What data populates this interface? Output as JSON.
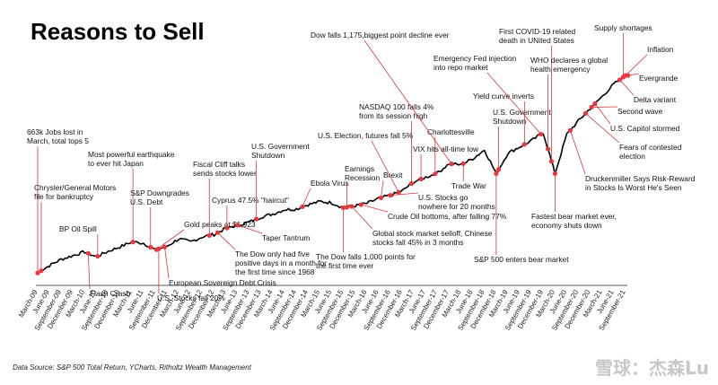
{
  "chart_data": {
    "type": "line",
    "title": "Reasons to Sell",
    "source": "Data Source: S&P 500 Total Return, YCharts, Ritholtz Wealth Management",
    "xlabel": "",
    "ylabel": "",
    "line_color": "#000000",
    "marker_color": "#e8383d",
    "categories": [
      "March-09",
      "June-09",
      "September-09",
      "December-09",
      "March-10",
      "June-10",
      "September-10",
      "December-10",
      "March-11",
      "June-11",
      "September-11",
      "December-11",
      "March-12",
      "June-12",
      "September-12",
      "December-12",
      "March-13",
      "June-13",
      "September-13",
      "December-13",
      "March-14",
      "June-14",
      "September-14",
      "December-14",
      "March-15",
      "June-15",
      "September-15",
      "December-15",
      "March-16",
      "June-16",
      "September-16",
      "December-16",
      "March-17",
      "June-17",
      "September-17",
      "December-17",
      "March-18",
      "June-18",
      "September-18",
      "December-18",
      "March-19",
      "June-19",
      "September-19",
      "December-19",
      "March-20",
      "June-20",
      "September-20",
      "December-20",
      "March-21",
      "June-21",
      "September-21"
    ],
    "series": [
      {
        "values": [
          0.5,
          0.62,
          0.72,
          0.78,
          0.84,
          0.76,
          0.85,
          0.92,
          1.0,
          0.98,
          0.87,
          0.93,
          1.05,
          1.0,
          1.08,
          1.12,
          1.22,
          1.27,
          1.32,
          1.4,
          1.45,
          1.52,
          1.53,
          1.6,
          1.65,
          1.63,
          1.55,
          1.58,
          1.62,
          1.7,
          1.75,
          1.82,
          1.97,
          2.04,
          2.11,
          2.26,
          2.24,
          2.34,
          2.48,
          2.1,
          2.43,
          2.53,
          2.63,
          2.76,
          2.1,
          2.73,
          2.95,
          3.15,
          3.34,
          3.54,
          3.68
        ]
      }
    ],
    "ylim": [
      0.3,
      4.1
    ],
    "grid": false,
    "baseline": true,
    "events": [
      {
        "text": "663k Jobs lost in\nMarch, total tops 5",
        "pos": 0.0,
        "side": "up"
      },
      {
        "text": "Chrysler/General Motors\nfile for bankruptcy",
        "pos": 0.3,
        "side": "up"
      },
      {
        "text": "BP Oil Spill",
        "pos": 5.1,
        "side": "up"
      },
      {
        "text": "Flash Crash",
        "pos": 4.3,
        "side": "down"
      },
      {
        "text": "Most powerful earthquake\nto ever hit Japan",
        "pos": 8.1,
        "side": "up"
      },
      {
        "text": "S&P Downgrades\nU.S. Debt",
        "pos": 9.6,
        "side": "up"
      },
      {
        "text": "U.S. Stocks fall 20%",
        "pos": 10.3,
        "side": "down"
      },
      {
        "text": "European Sovereign Debt Crisis",
        "pos": 10.8,
        "side": "down"
      },
      {
        "text": "Gold peaks at $1,923",
        "pos": 10.1,
        "side": "up"
      },
      {
        "text": "Fiscal Cliff talks\nsends stocks lower",
        "pos": 14.6,
        "side": "up"
      },
      {
        "text": "Cyprus 47.5% \"haircut\"",
        "pos": 16.1,
        "side": "up"
      },
      {
        "text": "The Dow only had five\npositive days in a month for\nthe first time since 1968",
        "pos": 15.3,
        "side": "down"
      },
      {
        "text": "U.S. Government\nShutdown",
        "pos": 18.6,
        "side": "up"
      },
      {
        "text": "Taper Tantrum",
        "pos": 17.0,
        "side": "down"
      },
      {
        "text": "Ebola Virus",
        "pos": 22.5,
        "side": "up"
      },
      {
        "text": "The Dow falls 1,000 points for\nthe first time ever",
        "pos": 26.0,
        "side": "down"
      },
      {
        "text": "Earnings\nRecession",
        "pos": 26.3,
        "side": "up"
      },
      {
        "text": "Global stock market selloff, Chinese\nstocks fall 45% in 3 months",
        "pos": 26.7,
        "side": "down"
      },
      {
        "text": "Crude Oil bottoms, after falling 77%",
        "pos": 27.5,
        "side": "down"
      },
      {
        "text": "Brexit",
        "pos": 29.2,
        "side": "up"
      },
      {
        "text": "U.S. Stocks go\nnowhere for 20 months",
        "pos": 30.0,
        "side": "down"
      },
      {
        "text": "U.S. Election, futures fall 5%",
        "pos": 30.7,
        "side": "up"
      },
      {
        "text": "NASDAQ 100 falls 4%\nfrom its  session high",
        "pos": 31.8,
        "side": "up"
      },
      {
        "text": "VIX hits all-time low",
        "pos": 32.6,
        "side": "up"
      },
      {
        "text": "Charlottesville",
        "pos": 33.8,
        "side": "up"
      },
      {
        "text": "Dow falls 1,175,biggest point decline ever",
        "pos": 35.2,
        "side": "up"
      },
      {
        "text": "Trade War",
        "pos": 36.2,
        "side": "down"
      },
      {
        "text": "U.S. Government\nShutdown",
        "pos": 39.2,
        "side": "up"
      },
      {
        "text": "S&P 500 enters bear market",
        "pos": 39.0,
        "side": "down"
      },
      {
        "text": "Yield curve inverts",
        "pos": 41.4,
        "side": "up"
      },
      {
        "text": "Emergency Fed injection\ninto repo market",
        "pos": 42.8,
        "side": "up"
      },
      {
        "text": "First COVID-19 related\ndeath in UNited States",
        "pos": 43.7,
        "side": "up"
      },
      {
        "text": "WHO declares a global\nhealth emergency",
        "pos": 43.4,
        "side": "up"
      },
      {
        "text": "Fastest bear market ever,\neconomy shuts down",
        "pos": 44.0,
        "side": "down"
      },
      {
        "text": "Druckenmiller Says Risk-Reward\nin Stocks Is Worst He's Seen",
        "pos": 45.3,
        "side": "down"
      },
      {
        "text": "Fears of contested\nelection",
        "pos": 46.6,
        "side": "down"
      },
      {
        "text": "U.S. Capitol stormed",
        "pos": 47.4,
        "side": "down"
      },
      {
        "text": "Second wave",
        "pos": 47.1,
        "side": "down"
      },
      {
        "text": "Delta variant",
        "pos": 49.5,
        "side": "down"
      },
      {
        "text": "Evergrande",
        "pos": 50.2,
        "side": "down"
      },
      {
        "text": "Inflation",
        "pos": 50.0,
        "side": "up"
      },
      {
        "text": "Supply shortages",
        "pos": 49.8,
        "side": "up"
      }
    ]
  },
  "watermark": "雪球：杰森Lu"
}
